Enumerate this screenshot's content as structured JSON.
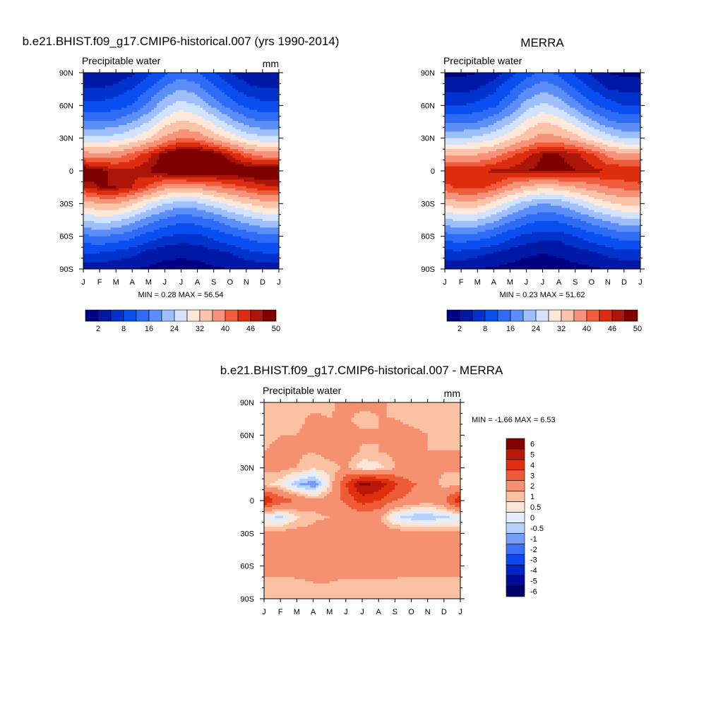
{
  "months": [
    "J",
    "F",
    "M",
    "A",
    "M",
    "J",
    "J",
    "A",
    "S",
    "O",
    "N",
    "D",
    "J"
  ],
  "lat_ticks": [
    "90N",
    "60N",
    "30N",
    "0",
    "30S",
    "60S",
    "90S"
  ],
  "panels": [
    {
      "id": "model",
      "title": "b.e21.BHIST.f09_g17.CMIP6-historical.007 (yrs 1990-2014)",
      "left_label": "Precipitable water",
      "right_label": "mm",
      "stats": "MIN =   0.28 MAX =  56.54",
      "colorbar_labels": [
        "2",
        "8",
        "16",
        "24",
        "32",
        "40",
        "46",
        "50"
      ]
    },
    {
      "id": "merra",
      "title": "MERRA",
      "left_label": "Precipitable water",
      "right_label": "mm",
      "stats": "MIN =   0.23 MAX =  51.62",
      "colorbar_labels": [
        "2",
        "8",
        "16",
        "24",
        "32",
        "40",
        "46",
        "50"
      ]
    },
    {
      "id": "diff",
      "title": "b.e21.BHIST.f09_g17.CMIP6-historical.007 - MERRA",
      "left_label": "Precipitable water",
      "right_label": "mm",
      "stats": "MIN =  -1.66 MAX =   6.53",
      "colorbar_labels": [
        "6",
        "5",
        "4",
        "3",
        "2",
        "1",
        "0.5",
        "0",
        "-0.5",
        "-1",
        "-2",
        "-3",
        "-4",
        "-5",
        "-6"
      ]
    }
  ],
  "chart_data": [
    {
      "type": "heatmap",
      "title": "b.e21.BHIST.f09_g17.CMIP6-historical.007 (yrs 1990-2014)",
      "variable": "Precipitable water",
      "units": "mm",
      "x": [
        "J",
        "F",
        "M",
        "A",
        "M",
        "J",
        "J",
        "A",
        "S",
        "O",
        "N",
        "D",
        "J"
      ],
      "y": [
        "90N",
        "60N",
        "30N",
        "0",
        "30S",
        "60S",
        "90S"
      ],
      "min": 0.28,
      "max": 56.54,
      "levels": [
        2,
        5,
        8,
        12,
        16,
        20,
        24,
        28,
        32,
        36,
        40,
        43,
        46,
        48,
        50
      ],
      "grid_lat": [
        90,
        75,
        60,
        45,
        30,
        15,
        0,
        -15,
        -30,
        -45,
        -60,
        -75,
        -90
      ],
      "values": [
        [
          2,
          2,
          3,
          4,
          7,
          11,
          14,
          12,
          8,
          5,
          3,
          2,
          2
        ],
        [
          5,
          5,
          6,
          8,
          12,
          17,
          20,
          18,
          13,
          9,
          6,
          5,
          5
        ],
        [
          9,
          9,
          10,
          12,
          17,
          23,
          26,
          24,
          19,
          14,
          11,
          9,
          9
        ],
        [
          16,
          16,
          17,
          20,
          24,
          30,
          33,
          31,
          27,
          22,
          18,
          16,
          16
        ],
        [
          25,
          25,
          26,
          28,
          32,
          37,
          40,
          39,
          35,
          31,
          27,
          25,
          25
        ],
        [
          38,
          37,
          38,
          41,
          45,
          49,
          52,
          52,
          50,
          46,
          41,
          38,
          38
        ],
        [
          51,
          49,
          47,
          47,
          48,
          50,
          53,
          53,
          52,
          51,
          51,
          52,
          51
        ],
        [
          46,
          48,
          48,
          46,
          42,
          38,
          36,
          37,
          39,
          41,
          43,
          45,
          46
        ],
        [
          34,
          36,
          36,
          33,
          28,
          24,
          22,
          23,
          26,
          29,
          32,
          34,
          34
        ],
        [
          24,
          26,
          25,
          22,
          18,
          15,
          13,
          14,
          16,
          19,
          22,
          24,
          24
        ],
        [
          15,
          16,
          15,
          13,
          10,
          8,
          7,
          7,
          9,
          11,
          13,
          15,
          15
        ],
        [
          8,
          8,
          7,
          6,
          4,
          3,
          2.5,
          3,
          4,
          5,
          7,
          8,
          8
        ],
        [
          3,
          3,
          2.5,
          2,
          1.5,
          1,
          1,
          1,
          1.5,
          2,
          2.5,
          3,
          3
        ]
      ]
    },
    {
      "type": "heatmap",
      "title": "MERRA",
      "variable": "Precipitable water",
      "units": "mm",
      "x": [
        "J",
        "F",
        "M",
        "A",
        "M",
        "J",
        "J",
        "A",
        "S",
        "O",
        "N",
        "D",
        "J"
      ],
      "y": [
        "90N",
        "60N",
        "30N",
        "0",
        "30S",
        "60S",
        "90S"
      ],
      "min": 0.23,
      "max": 51.62,
      "levels": [
        2,
        5,
        8,
        12,
        16,
        20,
        24,
        28,
        32,
        36,
        40,
        43,
        46,
        48,
        50
      ],
      "grid_lat": [
        90,
        75,
        60,
        45,
        30,
        15,
        0,
        -15,
        -30,
        -45,
        -60,
        -75,
        -90
      ],
      "values": [
        [
          1,
          1,
          2,
          3,
          6,
          10,
          13,
          11,
          7,
          4,
          2,
          1,
          1
        ],
        [
          4,
          4,
          5,
          7,
          11,
          16,
          19,
          17,
          12,
          8,
          5,
          4,
          4
        ],
        [
          8,
          8,
          9,
          11,
          16,
          22,
          25,
          23,
          18,
          13,
          10,
          8,
          8
        ],
        [
          15,
          15,
          16,
          19,
          23,
          29,
          32,
          30,
          26,
          21,
          17,
          15,
          15
        ],
        [
          24,
          24,
          25,
          27,
          31,
          35,
          38,
          37,
          34,
          30,
          26,
          24,
          24
        ],
        [
          36,
          35,
          36,
          38,
          42,
          45,
          48,
          48,
          47,
          44,
          39,
          36,
          36
        ],
        [
          46,
          45,
          45,
          47,
          47,
          48,
          49,
          49,
          48,
          47,
          46,
          46,
          46
        ],
        [
          42,
          44,
          44,
          42,
          38,
          35,
          33,
          34,
          36,
          38,
          40,
          41,
          42
        ],
        [
          33,
          35,
          34,
          31,
          26,
          22,
          20,
          21,
          24,
          28,
          31,
          33,
          33
        ],
        [
          23,
          25,
          24,
          21,
          17,
          14,
          12,
          13,
          15,
          18,
          21,
          23,
          23
        ],
        [
          14,
          15,
          14,
          12,
          9,
          7,
          6,
          6,
          8,
          10,
          12,
          14,
          14
        ],
        [
          7,
          7,
          6,
          5,
          3.5,
          2.5,
          2,
          2.5,
          3.5,
          4.5,
          6,
          7,
          7
        ],
        [
          2.5,
          2.5,
          2,
          1.5,
          1,
          0.8,
          0.7,
          0.8,
          1,
          1.5,
          2,
          2.5,
          2.5
        ]
      ]
    },
    {
      "type": "heatmap",
      "title": "b.e21.BHIST.f09_g17.CMIP6-historical.007 - MERRA",
      "variable": "Precipitable water",
      "units": "mm",
      "x": [
        "J",
        "F",
        "M",
        "A",
        "M",
        "J",
        "J",
        "A",
        "S",
        "O",
        "N",
        "D",
        "J"
      ],
      "y": [
        "90N",
        "60N",
        "30N",
        "0",
        "30S",
        "60S",
        "90S"
      ],
      "min": -1.66,
      "max": 6.53,
      "levels": [
        -6,
        -5,
        -4,
        -3,
        -2,
        -1,
        -0.5,
        0,
        0.5,
        1,
        2,
        3,
        4,
        5,
        6
      ],
      "grid_lat": [
        90,
        75,
        60,
        45,
        30,
        15,
        0,
        -15,
        -30,
        -45,
        -60,
        -75,
        -90
      ],
      "values": [
        [
          0.8,
          0.8,
          0.8,
          0.8,
          0.9,
          1.2,
          1.2,
          1.1,
          0.9,
          0.8,
          0.8,
          0.7,
          0.8
        ],
        [
          0.8,
          0.9,
          0.9,
          1.1,
          1.0,
          1.1,
          0.8,
          1.0,
          1.0,
          0.9,
          0.9,
          0.8,
          0.8
        ],
        [
          0.9,
          1.0,
          1.0,
          1.1,
          1.3,
          1.2,
          1.1,
          1.0,
          1.2,
          1.1,
          1.0,
          0.9,
          0.9
        ],
        [
          1.0,
          1.1,
          1.1,
          1.0,
          1.3,
          1.4,
          0.9,
          1.0,
          1.1,
          1.0,
          1.0,
          1.0,
          1.0
        ],
        [
          1.1,
          1.2,
          1.0,
          0.6,
          0.7,
          1.1,
          0.1,
          0.2,
          1.0,
          1.1,
          1.1,
          1.1,
          1.1
        ],
        [
          0.7,
          0.2,
          -0.9,
          -1.5,
          0.4,
          3.0,
          5.2,
          4.8,
          3.2,
          2.2,
          1.4,
          0.8,
          0.7
        ],
        [
          4.0,
          2.6,
          1.9,
          1.2,
          1.4,
          2.2,
          3.5,
          3.0,
          2.0,
          1.6,
          1.3,
          1.8,
          4.0
        ],
        [
          -0.3,
          -0.6,
          0.4,
          0.9,
          1.0,
          1.1,
          1.3,
          1.2,
          -0.3,
          -0.8,
          -0.9,
          -0.6,
          -0.3
        ],
        [
          1.2,
          1.3,
          1.3,
          1.2,
          1.3,
          1.4,
          1.4,
          1.4,
          1.4,
          1.3,
          1.3,
          1.2,
          1.2
        ],
        [
          1.4,
          1.4,
          1.4,
          1.4,
          1.4,
          1.4,
          1.4,
          1.4,
          1.4,
          1.4,
          1.4,
          1.4,
          1.4
        ],
        [
          1.2,
          1.2,
          1.3,
          1.3,
          1.3,
          1.3,
          1.3,
          1.3,
          1.3,
          1.2,
          1.2,
          1.2,
          1.2
        ],
        [
          0.9,
          0.9,
          0.9,
          1.0,
          1.0,
          0.9,
          0.9,
          0.9,
          0.9,
          0.9,
          0.9,
          0.9,
          0.9
        ],
        [
          0.7,
          0.7,
          0.7,
          0.7,
          0.7,
          0.7,
          0.7,
          0.7,
          0.7,
          0.7,
          0.7,
          0.7,
          0.7
        ]
      ]
    }
  ],
  "colors": {
    "abs_palette": [
      "#000080",
      "#0019a6",
      "#0133cc",
      "#0a4ef0",
      "#2f6cf5",
      "#5c8ef8",
      "#9fbefc",
      "#d1e3fd",
      "#fde8da",
      "#fbc4a8",
      "#f7937a",
      "#f05d3c",
      "#dd2d0f",
      "#ac1608",
      "#7e0000"
    ],
    "diff_palette": [
      "#00006b",
      "#000b9a",
      "#0025c7",
      "#0d47ef",
      "#3c71f6",
      "#779bfa",
      "#b8d0fd",
      "#e2edfe",
      "#fde6d6",
      "#fac1a2",
      "#f59071",
      "#ee5c37",
      "#e02f0f",
      "#b81809",
      "#820000"
    ]
  }
}
